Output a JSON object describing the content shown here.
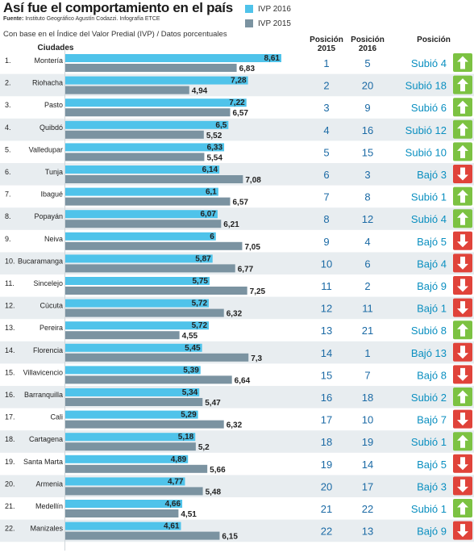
{
  "header": {
    "title": "Así fue el comportamiento en el país",
    "source_label": "Fuente:",
    "source_text": "Instituto Geográfico Agustín Codazzi. Infografía ETCE",
    "subtitle": "Con base en el Índice del Valor Predial (IVP) / Datos porcentuales"
  },
  "columns": {
    "cities": "Ciudades",
    "pos2015_line1": "Posición",
    "pos2015_line2": "2015",
    "pos2016_line1": "Posición",
    "pos2016_line2": "2016",
    "position": "Posición"
  },
  "colors": {
    "ivp2016": "#4fc3ea",
    "ivp2015": "#7b93a1",
    "row_alt": "#e8edf0",
    "up": "#7cc242",
    "down": "#e0433a",
    "trend_text": "#0a8fc0"
  },
  "chart_data": {
    "type": "bar",
    "orientation": "horizontal",
    "title": "Así fue el comportamiento en el país",
    "subtitle": "Con base en el Índice del Valor Predial (IVP) / Datos porcentuales",
    "legend_position": "top",
    "categories": [
      "Montería",
      "Riohacha",
      "Pasto",
      "Quibdó",
      "Valledupar",
      "Tunja",
      "Ibagué",
      "Popayán",
      "Neiva",
      "Bucaramanga",
      "Sincelejo",
      "Cúcuta",
      "Pereira",
      "Florencia",
      "Villavicencio",
      "Barranquilla",
      "Cali",
      "Cartagena",
      "Santa Marta",
      "Armenia",
      "Medellín",
      "Manizales"
    ],
    "series": [
      {
        "name": "IVP 2016",
        "values": [
          8.61,
          7.28,
          7.22,
          6.5,
          6.33,
          6.14,
          6.1,
          6.07,
          6,
          5.87,
          5.75,
          5.72,
          5.72,
          5.45,
          5.39,
          5.34,
          5.29,
          5.18,
          4.89,
          4.77,
          4.66,
          4.61
        ]
      },
      {
        "name": "IVP 2015",
        "values": [
          6.83,
          4.94,
          6.57,
          5.52,
          5.54,
          7.08,
          6.57,
          6.21,
          7.05,
          6.77,
          7.25,
          6.32,
          4.55,
          7.3,
          6.64,
          5.47,
          6.32,
          5.2,
          5.66,
          5.48,
          4.51,
          6.15
        ]
      }
    ],
    "xlim": [
      0,
      9
    ]
  },
  "rows": [
    {
      "rank": "1.",
      "city": "Montería",
      "v2016": "8,61",
      "v2015": "6,83",
      "p2015": "1",
      "p2016": "5",
      "change": "Subió 4",
      "dir": "up"
    },
    {
      "rank": "2.",
      "city": "Riohacha",
      "v2016": "7,28",
      "v2015": "4,94",
      "p2015": "2",
      "p2016": "20",
      "change": "Subió 18",
      "dir": "up"
    },
    {
      "rank": "3.",
      "city": "Pasto",
      "v2016": "7,22",
      "v2015": "6,57",
      "p2015": "3",
      "p2016": "9",
      "change": "Subió 6",
      "dir": "up"
    },
    {
      "rank": "4.",
      "city": "Quibdó",
      "v2016": "6,5",
      "v2015": "5,52",
      "p2015": "4",
      "p2016": "16",
      "change": "Subió 12",
      "dir": "up"
    },
    {
      "rank": "5.",
      "city": "Valledupar",
      "v2016": "6,33",
      "v2015": "5,54",
      "p2015": "5",
      "p2016": "15",
      "change": "Subió 10",
      "dir": "up"
    },
    {
      "rank": "6.",
      "city": "Tunja",
      "v2016": "6,14",
      "v2015": "7,08",
      "p2015": "6",
      "p2016": "3",
      "change": "Bajó 3",
      "dir": "down"
    },
    {
      "rank": "7.",
      "city": "Ibagué",
      "v2016": "6,1",
      "v2015": "6,57",
      "p2015": "7",
      "p2016": "8",
      "change": "Subió 1",
      "dir": "up"
    },
    {
      "rank": "8.",
      "city": "Popayán",
      "v2016": "6,07",
      "v2015": "6,21",
      "p2015": "8",
      "p2016": "12",
      "change": "Subió 4",
      "dir": "up"
    },
    {
      "rank": "9.",
      "city": "Neiva",
      "v2016": "6",
      "v2015": "7,05",
      "p2015": "9",
      "p2016": "4",
      "change": "Bajó 5",
      "dir": "down"
    },
    {
      "rank": "10.",
      "city": "Bucaramanga",
      "v2016": "5,87",
      "v2015": "6,77",
      "p2015": "10",
      "p2016": "6",
      "change": "Bajó 4",
      "dir": "down"
    },
    {
      "rank": "11.",
      "city": "Sincelejo",
      "v2016": "5,75",
      "v2015": "7,25",
      "p2015": "11",
      "p2016": "2",
      "change": "Bajó 9",
      "dir": "down"
    },
    {
      "rank": "12.",
      "city": "Cúcuta",
      "v2016": "5,72",
      "v2015": "6,32",
      "p2015": "12",
      "p2016": "11",
      "change": "Bajó 1",
      "dir": "down"
    },
    {
      "rank": "13.",
      "city": "Pereira",
      "v2016": "5,72",
      "v2015": "4,55",
      "p2015": "13",
      "p2016": "21",
      "change": "Subió 8",
      "dir": "up"
    },
    {
      "rank": "14.",
      "city": "Florencia",
      "v2016": "5,45",
      "v2015": "7,3",
      "p2015": "14",
      "p2016": "1",
      "change": "Bajó 13",
      "dir": "down"
    },
    {
      "rank": "15.",
      "city": "Villavicencio",
      "v2016": "5,39",
      "v2015": "6,64",
      "p2015": "15",
      "p2016": "7",
      "change": "Bajó 8",
      "dir": "down"
    },
    {
      "rank": "16.",
      "city": "Barranquilla",
      "v2016": "5,34",
      "v2015": "5,47",
      "p2015": "16",
      "p2016": "18",
      "change": "Subió 2",
      "dir": "up"
    },
    {
      "rank": "17.",
      "city": "Cali",
      "v2016": "5,29",
      "v2015": "6,32",
      "p2015": "17",
      "p2016": "10",
      "change": "Bajó 7",
      "dir": "down"
    },
    {
      "rank": "18.",
      "city": "Cartagena",
      "v2016": "5,18",
      "v2015": "5,2",
      "p2015": "18",
      "p2016": "19",
      "change": "Subió 1",
      "dir": "up"
    },
    {
      "rank": "19.",
      "city": "Santa Marta",
      "v2016": "4,89",
      "v2015": "5,66",
      "p2015": "19",
      "p2016": "14",
      "change": "Bajó 5",
      "dir": "down"
    },
    {
      "rank": "20.",
      "city": "Armenia",
      "v2016": "4,77",
      "v2015": "5,48",
      "p2015": "20",
      "p2016": "17",
      "change": "Bajó 3",
      "dir": "down"
    },
    {
      "rank": "21.",
      "city": "Medellín",
      "v2016": "4,66",
      "v2015": "4,51",
      "p2015": "21",
      "p2016": "22",
      "change": "Subió 1",
      "dir": "up"
    },
    {
      "rank": "22.",
      "city": "Manizales",
      "v2016": "4,61",
      "v2015": "6,15",
      "p2015": "22",
      "p2016": "13",
      "change": "Bajó 9",
      "dir": "down"
    }
  ]
}
